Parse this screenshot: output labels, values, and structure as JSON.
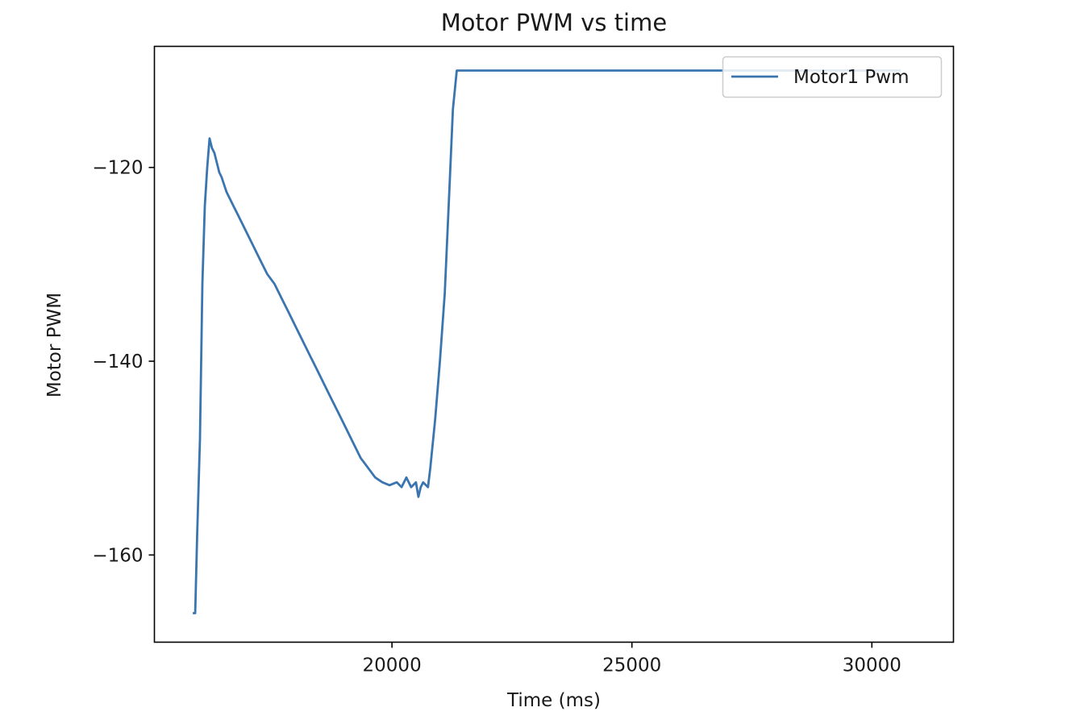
{
  "chart_data": {
    "type": "line",
    "title": "Motor PWM vs time",
    "xlabel": "Time (ms)",
    "ylabel": "Motor PWM",
    "xlim": [
      15050,
      31700
    ],
    "ylim": [
      -169,
      -107.5
    ],
    "xticks": [
      20000,
      25000,
      30000
    ],
    "yticks": [
      -120,
      -140,
      -160
    ],
    "xtick_labels": [
      "20000",
      "25000",
      "30000"
    ],
    "ytick_labels": [
      "−120",
      "−140",
      "−160"
    ],
    "grid": false,
    "legend_position": "upper-right",
    "line_color": "#3a75b0",
    "series": [
      {
        "name": "Motor1 Pwm",
        "x": [
          15850,
          15900,
          15940,
          16000,
          16050,
          16100,
          16150,
          16200,
          16250,
          16300,
          16350,
          16400,
          16450,
          16550,
          16650,
          16800,
          16950,
          17100,
          17250,
          17400,
          17550,
          17700,
          17850,
          18000,
          18150,
          18300,
          18450,
          18600,
          18750,
          18900,
          19050,
          19200,
          19350,
          19500,
          19650,
          19800,
          19950,
          20100,
          20200,
          20300,
          20400,
          20500,
          20550,
          20600,
          20650,
          20750,
          20800,
          20900,
          21000,
          21100,
          21200,
          21270,
          21350,
          22000,
          24000,
          26000,
          28000,
          30000,
          30600
        ],
        "y": [
          -166,
          -166,
          -158,
          -148,
          -132,
          -124,
          -120,
          -117,
          -118,
          -118.5,
          -119.5,
          -120.5,
          -121,
          -122.5,
          -123.5,
          -125,
          -126.5,
          -128,
          -129.5,
          -131,
          -132,
          -133.5,
          -135,
          -136.5,
          -138,
          -139.5,
          -141,
          -142.5,
          -144,
          -145.5,
          -147,
          -148.5,
          -150,
          -151,
          -152,
          -152.5,
          -152.8,
          -152.5,
          -153,
          -152,
          -153,
          -152.5,
          -154,
          -153,
          -152.5,
          -153,
          -151,
          -146,
          -140,
          -133,
          -122,
          -114,
          -110,
          -110,
          -110,
          -110,
          -110,
          -110,
          -110
        ]
      }
    ]
  }
}
